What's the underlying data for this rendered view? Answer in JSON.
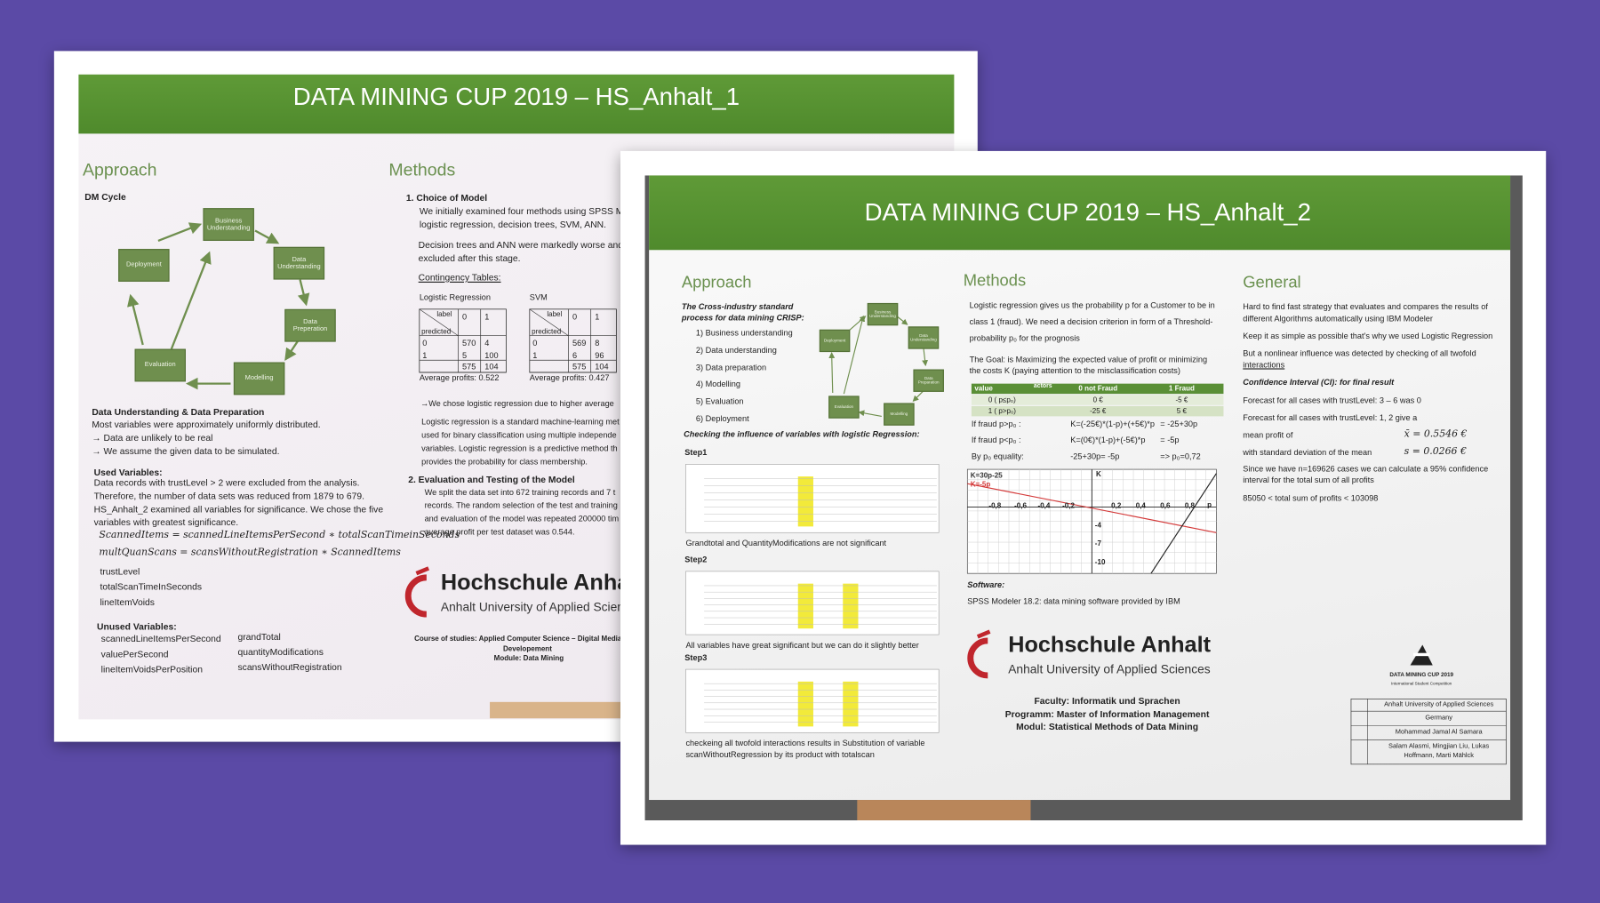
{
  "poster1": {
    "title": "DATA MINING CUP 2019 – HS_Anhalt_1",
    "approach": {
      "heading": "Approach",
      "subheading": "DM Cycle",
      "cycle": [
        "Business Understanding",
        "Data Understanding",
        "Data Preperation",
        "Modelling",
        "Evaluation",
        "Deployment"
      ],
      "prep_heading": "Data Understanding & Data Preparation",
      "prep_lines": [
        "Most variables were approximately uniformly distributed.",
        "→ Data are unlikely to be real",
        "→ We assume the given data to be simulated."
      ],
      "used_heading": "Used Variables:",
      "used_lines": [
        "Data records with trustLevel > 2 were excluded from the analysis.",
        "Therefore, the number of data sets was reduced from 1879 to 679.",
        "HS_Anhalt_2 examined all variables for significance. We chose the five",
        "variables with greatest significance."
      ],
      "formulas": [
        "ScannedItems = scannedLineItemsPerSecond ∗ totalScanTimeinSeconds",
        "multQuanScans = scansWithoutRegistration ∗ ScannedItems"
      ],
      "used_vars": [
        "trustLevel",
        "totalScanTimeInSeconds",
        "lineItemVoids"
      ],
      "unused_heading": "Unused Variables:",
      "unused_col1": [
        "scannedLineItemsPerSecond",
        "valuePerSecond",
        "lineItemVoidsPerPosition"
      ],
      "unused_col2": [
        "grandTotal",
        "quantityModifications",
        "scansWithoutRegistration"
      ]
    },
    "methods": {
      "heading": "Methods",
      "step1": "1.   Choice of Model",
      "step1_lines": [
        "We initially examined four methods using SPSS Mode",
        "logistic regression, decision trees, SVM, ANN."
      ],
      "excluded_lines": [
        "Decision trees and ANN were markedly worse and we",
        "excluded after this stage."
      ],
      "contingency": "Contingency Tables:",
      "tables": [
        {
          "name": "Logistic Regression",
          "label": "label",
          "predicted": "predicted",
          "head": [
            "0",
            "1"
          ],
          "rows": [
            [
              "0",
              "570",
              "4"
            ],
            [
              "1",
              "5",
              "100"
            ]
          ],
          "totals": [
            "575",
            "104"
          ],
          "profit": "Average profits: 0.522"
        },
        {
          "name": "SVM",
          "label": "label",
          "predicted": "predicted",
          "head": [
            "0",
            "1"
          ],
          "rows": [
            [
              "0",
              "569",
              "8"
            ],
            [
              "1",
              "6",
              "96"
            ]
          ],
          "totals": [
            "575",
            "104"
          ],
          "profit": "Average profits: 0.427"
        }
      ],
      "choice": "→We chose logistic regression due to higher average",
      "lr_lines": [
        "Logistic regression is a standard machine-learning met",
        "used for binary classification using multiple independe",
        "variables. Logistic regression is a predictive method th",
        "provides the probability for class membership."
      ],
      "step2": "2.   Evaluation and Testing of the Model",
      "step2_lines": [
        "We split the data set into 672 training records and 7 t",
        "records. The random selection of the test and training",
        "and evaluation of the model was repeated 200000 tim",
        "average profit per test dataset was 0.544."
      ]
    },
    "logo": {
      "name": "Hochschule Anhalt",
      "sub": "Anhalt University of Applied Sciences"
    },
    "course": [
      "Course of studies: Applied Computer Science – Digital Media and G",
      "Developement",
      "Module: Data Mining"
    ]
  },
  "poster2": {
    "title": "DATA MINING CUP 2019 – HS_Anhalt_2",
    "approach": {
      "heading": "Approach",
      "crisp": [
        "The Cross-industry standard",
        "process for data mining CRISP:"
      ],
      "list": [
        "1)   Business understanding",
        "2)   Data understanding",
        "3)   Data preparation",
        "4)   Modelling",
        "5)   Evaluation",
        "6)   Deployment"
      ],
      "cycle": [
        "Business Understanding",
        "Data Understanding",
        "Data Preparation",
        "Modelling",
        "Evaluation",
        "Deployment"
      ],
      "checking": "Checking the influence of variables with logistic Regression:",
      "steps": [
        {
          "name": "Step1",
          "note": [
            "Grandtotal and QuantityModifications are not significant"
          ]
        },
        {
          "name": "Step2",
          "note": [
            "All variables have great significant but we can do it slightly better"
          ]
        },
        {
          "name": "Step3",
          "note": [
            "checkeing all twofold interactions results in Substitution of variable",
            "scanWithoutRegression by its product with totalscan"
          ]
        }
      ]
    },
    "methods": {
      "heading": "Methods",
      "intro": [
        "Logistic regression gives us the probability p for a Customer to be in",
        "class 1 (fraud). We need a decision criterion in form of a Threshold-",
        "probability p₀ for the prognosis"
      ],
      "goal": [
        "The Goal: is Maximizing the expected value of profit or minimizing",
        "the costs K (paying attention to the misclassification costs)"
      ],
      "cost_table": {
        "corner_value": "value",
        "corner_actors": "actors",
        "head": [
          "0  not Fraud",
          "1  Fraud"
        ],
        "rows": [
          [
            "0  ( p≤p₀)",
            "0 €",
            "-5 €"
          ],
          [
            "1  ( p>p₀)",
            "-25 €",
            "5 €"
          ]
        ]
      },
      "equations": [
        [
          "If fraud p>p₀ :",
          "K=(-25€)*(1-p)+(+5€)*p",
          "= -25+30p"
        ],
        [
          "If fraud p<p₀ :",
          "K=(0€)*(1-p)+(-5€)*p",
          "= -5p"
        ],
        [
          "By p₀ equality:",
          "-25+30p= -5p",
          "=> p₀=0,72"
        ]
      ],
      "plot": {
        "line1": "K=30p-25",
        "line2": "K=-5p",
        "xname": "p",
        "yname": "K",
        "xticks": [
          "-0,8",
          "-0,6",
          "-0,4",
          "-0,2",
          "0,2",
          "0,4",
          "0,6",
          "0,8"
        ],
        "yticks": [
          "-4",
          "-7",
          "-10"
        ]
      },
      "software": "Software:",
      "software_line": "SPSS Modeler 18.2: data mining software provided by IBM"
    },
    "logo": {
      "name": "Hochschule Anhalt",
      "sub": "Anhalt University of Applied Sciences"
    },
    "faculty": [
      "Faculty: Informatik und Sprachen",
      "Programm: Master of Information Management",
      "Modul: Statistical Methods of Data Mining"
    ],
    "general": {
      "heading": "General",
      "lines": [
        "Hard to find fast strategy that evaluates and compares the results of",
        "different Algorithms automatically using IBM Modeler",
        "Keep it as simple as possible that's why we used Logistic Regression",
        "But a nonlinear influence was detected by checking of all twofold",
        "interactions",
        "Confidence Interval (CI): for final result",
        "Forecast for all cases with trustLevel: 3 – 6    was 0",
        "Forecast for all cases with trustLevel: 1, 2    give a",
        "mean profit of",
        "with standard deviation of the mean",
        "Since we have n=169626 cases we can calculate a 95% confidence",
        "interval for the total sum of all profits",
        "85050 < total sum of profits < 103098"
      ],
      "mean": "x̄ = 0.5546 €",
      "sd": "s = 0.0266 €"
    },
    "dmc": {
      "name": "DATA MINING CUP 2019",
      "sub": "International Student Competition"
    },
    "info": [
      "Anhalt University of Applied Sciences",
      "Germany",
      "Mohammad Jamal Al Samara",
      "Salam Alasmi, Mingjian Liu, Lukas",
      "Hoffmann, Marti Mählck"
    ]
  }
}
